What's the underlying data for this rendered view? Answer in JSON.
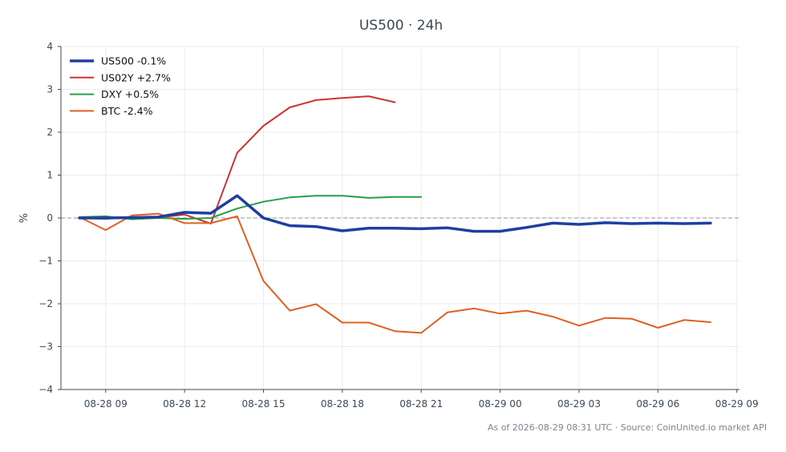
{
  "chart_data": {
    "type": "line",
    "title": "US500 · 24h",
    "xlabel": "",
    "ylabel": "%",
    "ylim": [
      -4,
      4
    ],
    "xlim": [
      "2026-08-28 07:18",
      "2026-08-29 09:06"
    ],
    "yticks": [
      -4,
      -3,
      -2,
      -1,
      0,
      1,
      2,
      3,
      4
    ],
    "ytick_labels": [
      "−4",
      "−3",
      "−2",
      "−1",
      "0",
      "1",
      "2",
      "3",
      "4"
    ],
    "xticks": [
      "2026-08-28 09:00",
      "2026-08-28 12:00",
      "2026-08-28 15:00",
      "2026-08-28 18:00",
      "2026-08-28 21:00",
      "2026-08-29 00:00",
      "2026-08-29 03:00",
      "2026-08-29 06:00",
      "2026-08-29 09:00"
    ],
    "xtick_labels": [
      "08-28 09",
      "08-28 12",
      "08-28 15",
      "08-28 18",
      "08-28 21",
      "08-29 00",
      "08-29 03",
      "08-29 06",
      "08-29 09"
    ],
    "reference_line": 0,
    "grid": true,
    "legend_position": "top-left",
    "series": [
      {
        "name": "US500 -0.1%",
        "color": "#1f3fa0",
        "width": 3.5,
        "x": [
          "2026-08-28 08:00",
          "2026-08-28 09:00",
          "2026-08-28 10:00",
          "2026-08-28 11:00",
          "2026-08-28 12:00",
          "2026-08-28 13:00",
          "2026-08-28 14:00",
          "2026-08-28 15:00",
          "2026-08-28 16:00",
          "2026-08-28 17:00",
          "2026-08-28 18:00",
          "2026-08-28 19:00",
          "2026-08-28 20:00",
          "2026-08-28 21:00",
          "2026-08-28 22:00",
          "2026-08-28 23:00",
          "2026-08-29 00:00",
          "2026-08-29 01:00",
          "2026-08-29 02:00",
          "2026-08-29 03:00",
          "2026-08-29 04:00",
          "2026-08-29 05:00",
          "2026-08-29 06:00",
          "2026-08-29 07:00",
          "2026-08-29 08:00"
        ],
        "y": [
          0.0,
          0.0,
          0.01,
          0.02,
          0.13,
          0.11,
          0.52,
          0.0,
          -0.18,
          -0.2,
          -0.3,
          -0.24,
          -0.24,
          -0.25,
          -0.23,
          -0.31,
          -0.31,
          -0.22,
          -0.12,
          -0.15,
          -0.11,
          -0.13,
          -0.12,
          -0.13,
          -0.12
        ]
      },
      {
        "name": "US02Y +2.7%",
        "color": "#cc3333",
        "width": 2,
        "x": [
          "2026-08-28 08:00",
          "2026-08-28 09:00",
          "2026-08-28 10:00",
          "2026-08-28 11:00",
          "2026-08-28 12:00",
          "2026-08-28 13:00",
          "2026-08-28 14:00",
          "2026-08-28 15:00",
          "2026-08-28 16:00",
          "2026-08-28 17:00",
          "2026-08-28 18:00",
          "2026-08-28 19:00",
          "2026-08-28 20:00"
        ],
        "y": [
          0.0,
          -0.02,
          0.02,
          0.01,
          0.08,
          -0.13,
          1.52,
          2.15,
          2.58,
          2.75,
          2.8,
          2.84,
          2.7
        ]
      },
      {
        "name": "DXY +0.5%",
        "color": "#22a046",
        "width": 2,
        "x": [
          "2026-08-28 08:00",
          "2026-08-28 09:00",
          "2026-08-28 10:00",
          "2026-08-28 11:00",
          "2026-08-28 12:00",
          "2026-08-28 13:00",
          "2026-08-28 14:00",
          "2026-08-28 15:00",
          "2026-08-28 16:00",
          "2026-08-28 17:00",
          "2026-08-28 18:00",
          "2026-08-28 19:00",
          "2026-08-28 20:00",
          "2026-08-28 21:00"
        ],
        "y": [
          0.02,
          0.04,
          -0.03,
          0.0,
          -0.02,
          0.0,
          0.22,
          0.38,
          0.48,
          0.52,
          0.52,
          0.47,
          0.49,
          0.49
        ]
      },
      {
        "name": "BTC -2.4%",
        "color": "#e06020",
        "width": 2,
        "x": [
          "2026-08-28 08:00",
          "2026-08-28 09:00",
          "2026-08-28 10:00",
          "2026-08-28 11:00",
          "2026-08-28 12:00",
          "2026-08-28 13:00",
          "2026-08-28 14:00",
          "2026-08-28 15:00",
          "2026-08-28 16:00",
          "2026-08-28 17:00",
          "2026-08-28 18:00",
          "2026-08-28 19:00",
          "2026-08-28 20:00",
          "2026-08-28 21:00",
          "2026-08-28 22:00",
          "2026-08-28 23:00",
          "2026-08-29 00:00",
          "2026-08-29 01:00",
          "2026-08-29 02:00",
          "2026-08-29 03:00",
          "2026-08-29 04:00",
          "2026-08-29 05:00",
          "2026-08-29 06:00",
          "2026-08-29 07:00",
          "2026-08-29 08:00"
        ],
        "y": [
          0.02,
          -0.28,
          0.06,
          0.1,
          -0.12,
          -0.12,
          0.04,
          -1.47,
          -2.16,
          -2.01,
          -2.44,
          -2.44,
          -2.64,
          -2.68,
          -2.2,
          -2.11,
          -2.23,
          -2.16,
          -2.3,
          -2.51,
          -2.33,
          -2.35,
          -2.56,
          -2.38,
          -2.43
        ]
      }
    ]
  },
  "footer": {
    "note": "As of 2026-08-29 08:31 UTC · Source: CoinUnited.io market API"
  }
}
